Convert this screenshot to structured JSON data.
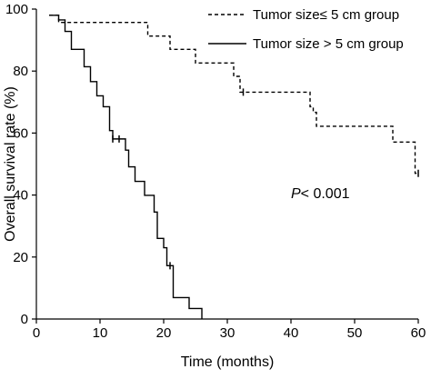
{
  "chart_data": {
    "type": "line",
    "subtype": "kaplan-meier",
    "title": "",
    "xlabel": "Time (months)",
    "ylabel": "Overall survival rate (%)",
    "xlim": [
      0,
      60
    ],
    "ylim": [
      0,
      100
    ],
    "xticks": [
      0,
      10,
      20,
      30,
      40,
      50,
      60
    ],
    "yticks": [
      0,
      20,
      40,
      60,
      80,
      100
    ],
    "grid": false,
    "legend_position": "top-right",
    "annotation": {
      "italic": "P",
      "rest": "< 0.001",
      "x": 40,
      "y": 39
    },
    "series": [
      {
        "name": "Tumor size≤ 5 cm group",
        "style": "dashed",
        "color": "#000000",
        "steps": [
          [
            2,
            98
          ],
          [
            3.5,
            95.7
          ],
          [
            17.5,
            91.3
          ],
          [
            21,
            87
          ],
          [
            25,
            82.6
          ],
          [
            31,
            78.3
          ],
          [
            32,
            73.2
          ],
          [
            43,
            68.5
          ],
          [
            43.5,
            66.7
          ],
          [
            44,
            62.2
          ],
          [
            56,
            57.1
          ],
          [
            59.5,
            47
          ]
        ],
        "censored": [
          [
            32.5,
            73.2
          ],
          [
            60,
            47
          ]
        ]
      },
      {
        "name": "Tumor size > 5 cm group",
        "style": "solid",
        "color": "#000000",
        "steps": [
          [
            2,
            98
          ],
          [
            3.5,
            96.5
          ],
          [
            4.5,
            92.8
          ],
          [
            5.5,
            87
          ],
          [
            7.5,
            81.4
          ],
          [
            8.5,
            76.6
          ],
          [
            9.5,
            72
          ],
          [
            10.5,
            68.5
          ],
          [
            11.5,
            60.8
          ],
          [
            12,
            58.1
          ],
          [
            14,
            54.5
          ],
          [
            14.5,
            49.1
          ],
          [
            15.5,
            44.4
          ],
          [
            17,
            39.9
          ],
          [
            18.5,
            34.5
          ],
          [
            19,
            26
          ],
          [
            20,
            23
          ],
          [
            20.5,
            17.2
          ],
          [
            21.5,
            6.9
          ],
          [
            24,
            3.4
          ],
          [
            26,
            0
          ]
        ],
        "censored": [
          [
            12,
            58.1
          ],
          [
            13,
            58.1
          ],
          [
            21,
            17.2
          ]
        ]
      }
    ]
  }
}
